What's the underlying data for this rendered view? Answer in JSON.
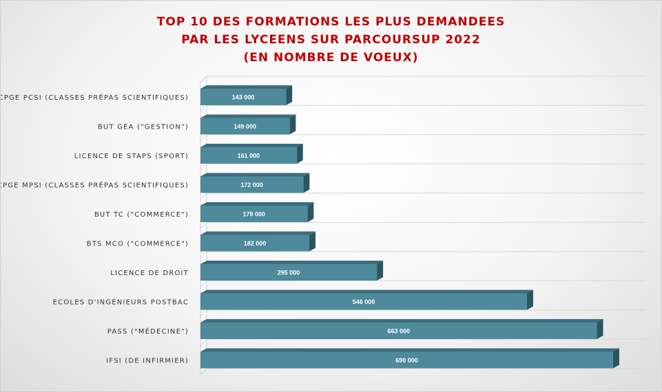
{
  "title_lines": [
    "TOP 10 DES FORMATIONS LES PLUS DEMANDEES",
    "PAR LES LYCEENS SUR PARCOURSUP 2022",
    "(EN NOMBRE DE VOEUX)"
  ],
  "colors": {
    "title": "#c00000",
    "bar_front": "#4e8a9c",
    "bar_top": "#3b6e7d",
    "bar_side": "#2c5561"
  },
  "chart_data": {
    "type": "bar",
    "orientation": "horizontal",
    "title": "TOP 10 DES FORMATIONS LES PLUS DEMANDEES PAR LES LYCEENS SUR PARCOURSUP 2022 (EN NOMBRE DE VOEUX)",
    "categories": [
      "CPGE PCSI (CLASSES PRÉPAS SCIENTIFIQUES)",
      "BUT GEA (\"GESTION\")",
      "LICENCE DE STAPS (SPORT)",
      "CPGE MPSI (CLASSES PRÉPAS SCIENTIFIQUES)",
      "BUT TC (\"COMMERCE\")",
      "BTS MCO (\"COMMERCE\")",
      "LICENCE DE DROIT",
      "ECOLES D'INGÉNIEURS POSTBAC",
      "PASS (\"MÉDECINE\")",
      "IFSI (DE INFIRMIER)"
    ],
    "values": [
      143000,
      149000,
      161000,
      172000,
      179000,
      182000,
      295000,
      546000,
      663000,
      690000
    ],
    "value_labels": [
      "143 000",
      "149 000",
      "161 000",
      "172 000",
      "179 000",
      "182 000",
      "295 000",
      "546 000",
      "663 000",
      "690 000"
    ],
    "xlim": [
      0,
      720000
    ],
    "grid": true,
    "legend": "none",
    "style": "3d"
  }
}
